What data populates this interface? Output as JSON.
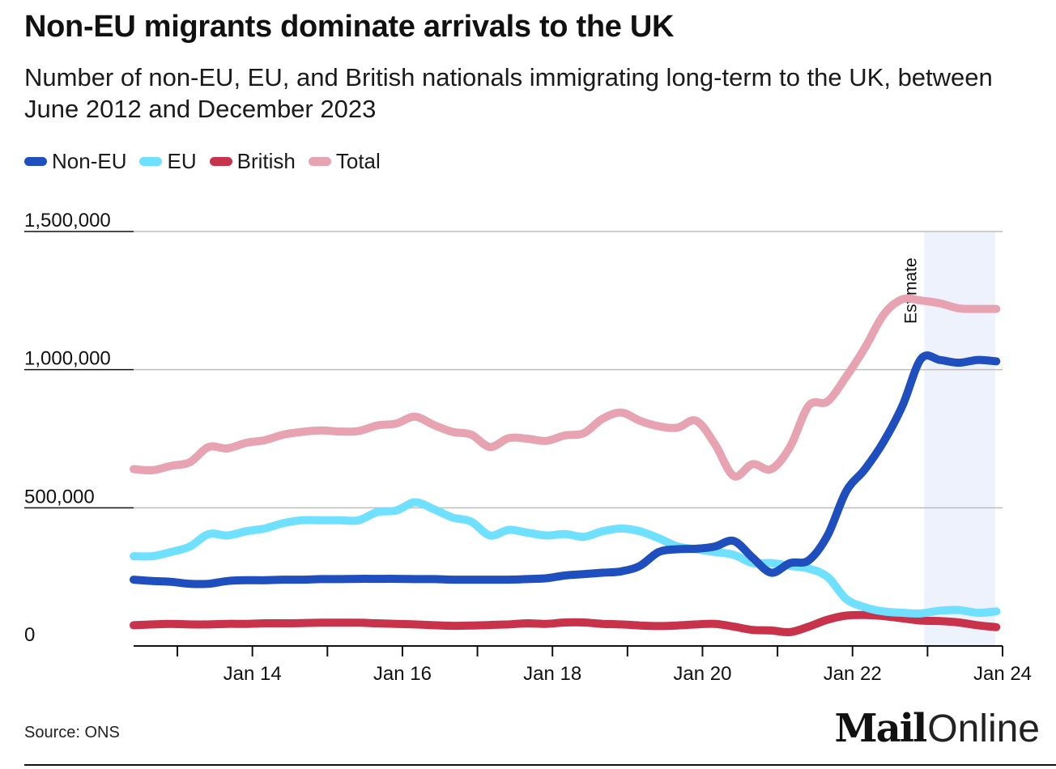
{
  "header": {
    "title": "Non-EU migrants dominate arrivals to the UK",
    "subtitle": "Number of non-EU, EU, and British nationals immigrating long-term to the UK, between June 2012 and December 2023"
  },
  "footer": {
    "source": "Source: ONS",
    "logo_mail": "Mail",
    "logo_online": "Online"
  },
  "chart_data": {
    "type": "line",
    "title": "Non-EU migrants dominate arrivals to the UK",
    "subtitle": "Number of non-EU, EU, and British nationals immigrating long-term to the UK, between June 2012 and December 2023",
    "xlabel": "",
    "ylabel": "",
    "x_range": [
      "2012-06",
      "2024-01"
    ],
    "ylim": [
      0,
      1500000
    ],
    "y_ticks": [
      0,
      500000,
      1000000,
      1500000
    ],
    "y_tick_labels": [
      "0",
      "500,000",
      "1,000,000",
      "1,500,000"
    ],
    "x_ticks": [
      "2013-01",
      "2014-01",
      "2015-01",
      "2016-01",
      "2017-01",
      "2018-01",
      "2019-01",
      "2020-01",
      "2021-01",
      "2022-01",
      "2023-01",
      "2024-01"
    ],
    "x_tick_labels": [
      "",
      "Jan 14",
      "",
      "Jan 16",
      "",
      "Jan 18",
      "",
      "Jan 20",
      "",
      "Jan 22",
      "",
      "Jan 24"
    ],
    "grid": true,
    "legend_position": "top-left",
    "estimate_region": {
      "start": "2023-01",
      "end": "2024-01",
      "label": "Estimate",
      "color": "#eef2fd"
    },
    "x": [
      "2012-06",
      "2012-09",
      "2012-12",
      "2013-03",
      "2013-06",
      "2013-09",
      "2013-12",
      "2014-03",
      "2014-06",
      "2014-09",
      "2014-12",
      "2015-03",
      "2015-06",
      "2015-09",
      "2015-12",
      "2016-03",
      "2016-06",
      "2016-09",
      "2016-12",
      "2017-03",
      "2017-06",
      "2017-09",
      "2017-12",
      "2018-03",
      "2018-06",
      "2018-09",
      "2018-12",
      "2019-03",
      "2019-06",
      "2019-09",
      "2019-12",
      "2020-03",
      "2020-06",
      "2020-09",
      "2020-12",
      "2021-03",
      "2021-06",
      "2021-09",
      "2021-12",
      "2022-03",
      "2022-06",
      "2022-09",
      "2022-12",
      "2023-03",
      "2023-06",
      "2023-09",
      "2023-12"
    ],
    "series": [
      {
        "name": "Non-EU",
        "color": "#1f4fbf",
        "values": [
          240000,
          235000,
          232000,
          225000,
          225000,
          235000,
          238000,
          238000,
          240000,
          240000,
          242000,
          242000,
          243000,
          243000,
          243000,
          242000,
          242000,
          240000,
          240000,
          240000,
          240000,
          242000,
          245000,
          255000,
          260000,
          265000,
          270000,
          290000,
          340000,
          350000,
          352000,
          360000,
          380000,
          320000,
          265000,
          300000,
          310000,
          400000,
          560000,
          640000,
          740000,
          870000,
          1040000,
          1035000,
          1025000,
          1035000,
          1030000
        ]
      },
      {
        "name": "EU",
        "color": "#6fe0ff",
        "values": [
          325000,
          325000,
          340000,
          360000,
          405000,
          400000,
          415000,
          425000,
          445000,
          455000,
          455000,
          455000,
          455000,
          485000,
          490000,
          520000,
          495000,
          465000,
          450000,
          400000,
          420000,
          410000,
          400000,
          405000,
          395000,
          415000,
          425000,
          415000,
          390000,
          360000,
          350000,
          340000,
          330000,
          300000,
          300000,
          290000,
          280000,
          250000,
          170000,
          140000,
          125000,
          120000,
          118000,
          128000,
          130000,
          120000,
          125000
        ]
      },
      {
        "name": "British",
        "color": "#c8334b",
        "values": [
          75000,
          78000,
          80000,
          78000,
          78000,
          80000,
          80000,
          82000,
          82000,
          83000,
          84000,
          84000,
          84000,
          82000,
          80000,
          78000,
          75000,
          73000,
          74000,
          76000,
          78000,
          82000,
          80000,
          85000,
          85000,
          80000,
          78000,
          74000,
          72000,
          74000,
          78000,
          80000,
          70000,
          58000,
          56000,
          50000,
          70000,
          95000,
          110000,
          112000,
          108000,
          100000,
          92000,
          90000,
          85000,
          75000,
          68000
        ]
      },
      {
        "name": "Total",
        "color": "#e8a3b2",
        "values": [
          640000,
          636000,
          652000,
          665000,
          720000,
          715000,
          735000,
          745000,
          765000,
          775000,
          780000,
          776000,
          778000,
          798000,
          805000,
          830000,
          800000,
          775000,
          765000,
          720000,
          752000,
          750000,
          742000,
          762000,
          770000,
          822000,
          845000,
          815000,
          795000,
          790000,
          815000,
          730000,
          615000,
          658000,
          640000,
          720000,
          870000,
          885000,
          975000,
          1080000,
          1200000,
          1255000,
          1250000,
          1240000,
          1222000,
          1220000,
          1220000
        ]
      }
    ]
  }
}
